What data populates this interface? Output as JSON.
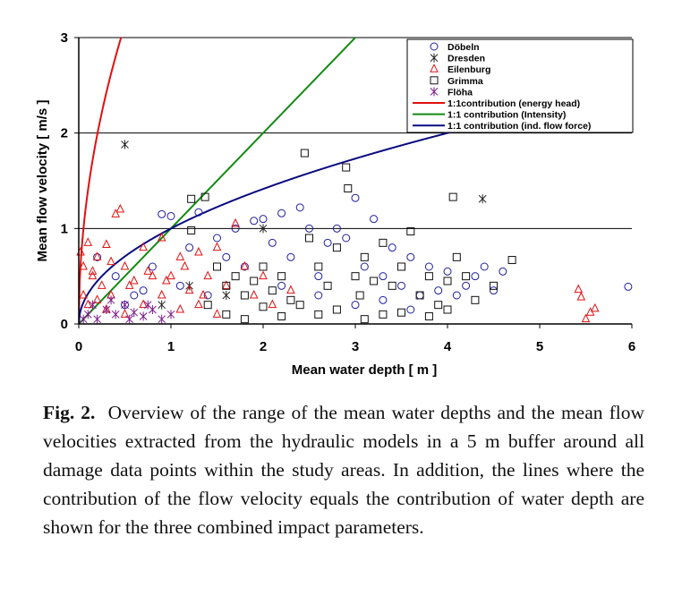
{
  "caption": {
    "label": "Fig. 2.",
    "text": "Overview of the range of the mean water depths and the mean flow velocities extracted from the hydraulic models in a 5 m buffer around all damage data points within the study areas. In addition, the lines where the contribution of the flow velocity equals the contribution of water depth are shown for the three combined impact parameters."
  },
  "colors": {
    "doebeln": "#1f1fa0",
    "dresden": "#222222",
    "eilenburg": "#e01010",
    "grimma": "#111111",
    "floeha": "#7a1a8a",
    "energy_head": "#e01010",
    "intensity": "#138a13",
    "flow_force": "#0a0a80"
  },
  "chart_data": {
    "type": "scatter",
    "xlabel": "Mean water depth [ m ]",
    "ylabel": "Mean flow velocity [ m/s ]",
    "xlim": [
      0,
      6
    ],
    "ylim": [
      0,
      3
    ],
    "xticks": [
      "0",
      "1",
      "2",
      "3",
      "4",
      "5",
      "6"
    ],
    "yticks": [
      "0",
      "1",
      "2",
      "3"
    ],
    "grid": "horizontal",
    "legend_position": "top-right",
    "series": [
      {
        "name": "Döbeln",
        "marker": "circle",
        "color": "#1f1fa0",
        "points": [
          [
            0.2,
            0.7
          ],
          [
            0.4,
            0.5
          ],
          [
            0.6,
            0.3
          ],
          [
            0.8,
            0.6
          ],
          [
            0.9,
            1.15
          ],
          [
            1.0,
            1.13
          ],
          [
            1.2,
            0.8
          ],
          [
            1.3,
            1.17
          ],
          [
            1.5,
            0.9
          ],
          [
            1.6,
            0.7
          ],
          [
            1.7,
            1.0
          ],
          [
            1.8,
            0.6
          ],
          [
            1.9,
            1.08
          ],
          [
            2.0,
            1.1
          ],
          [
            2.1,
            0.85
          ],
          [
            2.2,
            1.16
          ],
          [
            2.3,
            0.7
          ],
          [
            2.4,
            1.22
          ],
          [
            2.5,
            1.0
          ],
          [
            2.6,
            0.5
          ],
          [
            2.7,
            0.85
          ],
          [
            2.8,
            1.0
          ],
          [
            2.9,
            0.9
          ],
          [
            3.0,
            1.32
          ],
          [
            3.1,
            0.6
          ],
          [
            3.2,
            1.1
          ],
          [
            3.3,
            0.5
          ],
          [
            3.4,
            0.8
          ],
          [
            3.5,
            0.4
          ],
          [
            3.6,
            0.7
          ],
          [
            3.7,
            0.3
          ],
          [
            3.8,
            0.6
          ],
          [
            3.9,
            0.35
          ],
          [
            4.0,
            0.55
          ],
          [
            4.1,
            0.3
          ],
          [
            4.3,
            0.5
          ],
          [
            4.4,
            0.6
          ],
          [
            4.5,
            0.35
          ],
          [
            4.6,
            0.55
          ],
          [
            5.96,
            0.39
          ],
          [
            1.1,
            0.4
          ],
          [
            1.4,
            0.3
          ],
          [
            2.2,
            0.4
          ],
          [
            2.6,
            0.3
          ],
          [
            3.0,
            0.2
          ],
          [
            3.3,
            0.25
          ],
          [
            3.6,
            0.15
          ],
          [
            4.2,
            0.4
          ],
          [
            0.5,
            0.2
          ],
          [
            0.7,
            0.35
          ]
        ]
      },
      {
        "name": "Dresden",
        "marker": "asterisk",
        "color": "#222222",
        "points": [
          [
            0.5,
            1.88
          ],
          [
            4.38,
            1.31
          ],
          [
            2.0,
            1.0
          ],
          [
            1.2,
            0.4
          ],
          [
            1.6,
            0.3
          ],
          [
            0.9,
            0.2
          ]
        ]
      },
      {
        "name": "Eilenburg",
        "marker": "triangle",
        "color": "#e01010",
        "points": [
          [
            0.02,
            0.75
          ],
          [
            0.05,
            0.6
          ],
          [
            0.1,
            0.85
          ],
          [
            0.15,
            0.5
          ],
          [
            0.2,
            0.7
          ],
          [
            0.25,
            0.4
          ],
          [
            0.3,
            0.83
          ],
          [
            0.35,
            0.3
          ],
          [
            0.4,
            1.15
          ],
          [
            0.45,
            1.2
          ],
          [
            0.5,
            0.6
          ],
          [
            0.6,
            0.45
          ],
          [
            0.7,
            0.8
          ],
          [
            0.8,
            0.5
          ],
          [
            0.9,
            0.9
          ],
          [
            1.0,
            0.5
          ],
          [
            1.1,
            0.7
          ],
          [
            1.2,
            0.35
          ],
          [
            1.3,
            0.75
          ],
          [
            1.4,
            0.5
          ],
          [
            1.5,
            0.8
          ],
          [
            1.6,
            0.4
          ],
          [
            1.7,
            1.05
          ],
          [
            1.8,
            0.6
          ],
          [
            1.9,
            0.3
          ],
          [
            2.0,
            0.5
          ],
          [
            2.1,
            0.2
          ],
          [
            2.3,
            0.35
          ],
          [
            5.42,
            0.36
          ],
          [
            5.45,
            0.28
          ],
          [
            5.5,
            0.05
          ],
          [
            5.55,
            0.12
          ],
          [
            5.6,
            0.16
          ],
          [
            0.05,
            0.3
          ],
          [
            0.1,
            0.2
          ],
          [
            0.2,
            0.25
          ],
          [
            0.3,
            0.15
          ],
          [
            0.5,
            0.1
          ],
          [
            0.7,
            0.2
          ],
          [
            0.9,
            0.3
          ],
          [
            1.1,
            0.15
          ],
          [
            1.3,
            0.2
          ],
          [
            1.5,
            0.1
          ],
          [
            0.15,
            0.55
          ],
          [
            0.35,
            0.65
          ],
          [
            0.55,
            0.4
          ],
          [
            0.75,
            0.55
          ],
          [
            0.95,
            0.45
          ],
          [
            1.15,
            0.6
          ],
          [
            1.35,
            0.3
          ]
        ]
      },
      {
        "name": "Grimma",
        "marker": "square",
        "color": "#111111",
        "points": [
          [
            1.22,
            1.31
          ],
          [
            1.37,
            1.33
          ],
          [
            1.22,
            0.98
          ],
          [
            1.5,
            0.6
          ],
          [
            1.6,
            0.4
          ],
          [
            1.7,
            0.5
          ],
          [
            1.8,
            0.3
          ],
          [
            1.9,
            0.45
          ],
          [
            2.0,
            0.6
          ],
          [
            2.1,
            0.35
          ],
          [
            2.2,
            0.5
          ],
          [
            2.3,
            0.25
          ],
          [
            2.45,
            1.79
          ],
          [
            2.5,
            0.9
          ],
          [
            2.6,
            0.6
          ],
          [
            2.7,
            0.4
          ],
          [
            2.8,
            0.8
          ],
          [
            2.9,
            1.64
          ],
          [
            2.92,
            1.42
          ],
          [
            3.0,
            0.5
          ],
          [
            3.05,
            0.3
          ],
          [
            3.1,
            0.7
          ],
          [
            3.2,
            0.45
          ],
          [
            3.3,
            0.85
          ],
          [
            3.4,
            0.4
          ],
          [
            3.5,
            0.6
          ],
          [
            3.6,
            0.97
          ],
          [
            3.7,
            0.3
          ],
          [
            3.8,
            0.5
          ],
          [
            3.9,
            0.2
          ],
          [
            4.0,
            0.45
          ],
          [
            4.06,
            1.33
          ],
          [
            4.1,
            0.7
          ],
          [
            4.2,
            0.5
          ],
          [
            4.3,
            0.25
          ],
          [
            4.5,
            0.4
          ],
          [
            4.7,
            0.67
          ],
          [
            3.1,
            0.05
          ],
          [
            3.3,
            0.1
          ],
          [
            3.5,
            0.12
          ],
          [
            3.8,
            0.08
          ],
          [
            4.0,
            0.15
          ],
          [
            2.4,
            0.2
          ],
          [
            2.6,
            0.1
          ],
          [
            2.8,
            0.15
          ],
          [
            1.4,
            0.2
          ],
          [
            1.6,
            0.1
          ],
          [
            1.8,
            0.05
          ],
          [
            2.0,
            0.18
          ],
          [
            2.2,
            0.08
          ]
        ]
      },
      {
        "name": "Flöha",
        "marker": "asterisk",
        "color": "#7a1a8a",
        "points": [
          [
            0.05,
            0.05
          ],
          [
            0.1,
            0.1
          ],
          [
            0.2,
            0.05
          ],
          [
            0.3,
            0.15
          ],
          [
            0.4,
            0.1
          ],
          [
            0.5,
            0.2
          ],
          [
            0.6,
            0.12
          ],
          [
            0.7,
            0.08
          ],
          [
            0.8,
            0.15
          ],
          [
            0.9,
            0.05
          ],
          [
            1.0,
            0.1
          ],
          [
            0.15,
            0.2
          ],
          [
            0.35,
            0.25
          ],
          [
            0.55,
            0.05
          ],
          [
            0.75,
            0.2
          ]
        ]
      }
    ],
    "lines": [
      {
        "name": "1:1contribution  (energy head)",
        "color": "#e01010",
        "equation": "v = sqrt(2*g*h)"
      },
      {
        "name": "1:1 contribution (Intensity)",
        "color": "#138a13",
        "equation": "v = h"
      },
      {
        "name": "1:1 contribution (ind. flow force)",
        "color": "#0a0a80",
        "equation": "v = sqrt(h)"
      }
    ]
  }
}
